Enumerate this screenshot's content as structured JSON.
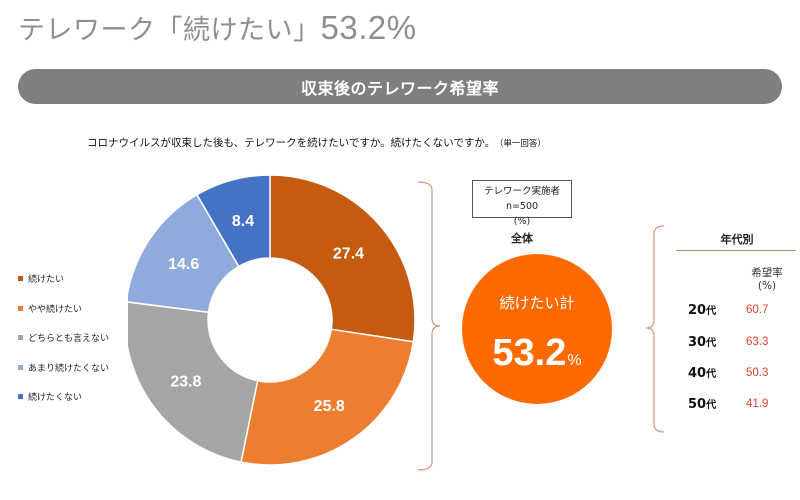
{
  "page_title": {
    "prefix": "テレワーク「続けたい」",
    "value": "53.2%"
  },
  "banner": {
    "title": "収束後のテレワーク希望率"
  },
  "question": {
    "text": "コロナウイルスが収束した後も、テレワークを続けたいですか。続けたくないですか。",
    "note": "（単一回答）"
  },
  "sample": {
    "line1": "テレワーク実施者　n=500",
    "line2": "(%)"
  },
  "overall": {
    "label": "全体",
    "circle_label": "続けたい計",
    "value": "53.2",
    "unit": "%"
  },
  "age_section": {
    "title": "年代別",
    "header_line1": "希望率",
    "header_line2": "(%)",
    "rows": [
      {
        "age": "20",
        "suffix": "代",
        "rate": "60.7"
      },
      {
        "age": "30",
        "suffix": "代",
        "rate": "63.3"
      },
      {
        "age": "40",
        "suffix": "代",
        "rate": "50.3"
      },
      {
        "age": "50",
        "suffix": "代",
        "rate": "41.9"
      }
    ]
  },
  "colors": {
    "accent": "#ff6a00",
    "banner": "#7f7f7f",
    "rate_text": "#e8412c",
    "bracket": "#d9957a"
  },
  "chart_data": {
    "type": "pie",
    "subtype": "donut",
    "title": "収束後のテレワーク希望率",
    "legend_position": "left",
    "start_angle_deg": 0,
    "direction": "clockwise",
    "slices": [
      {
        "label": "続けたい",
        "value": 27.4,
        "color": "#c55a11"
      },
      {
        "label": "やや続けたい",
        "value": 25.8,
        "color": "#ed7d31"
      },
      {
        "label": "どちらとも言えない",
        "value": 23.8,
        "color": "#a5a5a5"
      },
      {
        "label": "あまり続けたくない",
        "value": 14.6,
        "color": "#8faadc"
      },
      {
        "label": "続けたくない",
        "value": 8.4,
        "color": "#4472c4"
      }
    ]
  }
}
